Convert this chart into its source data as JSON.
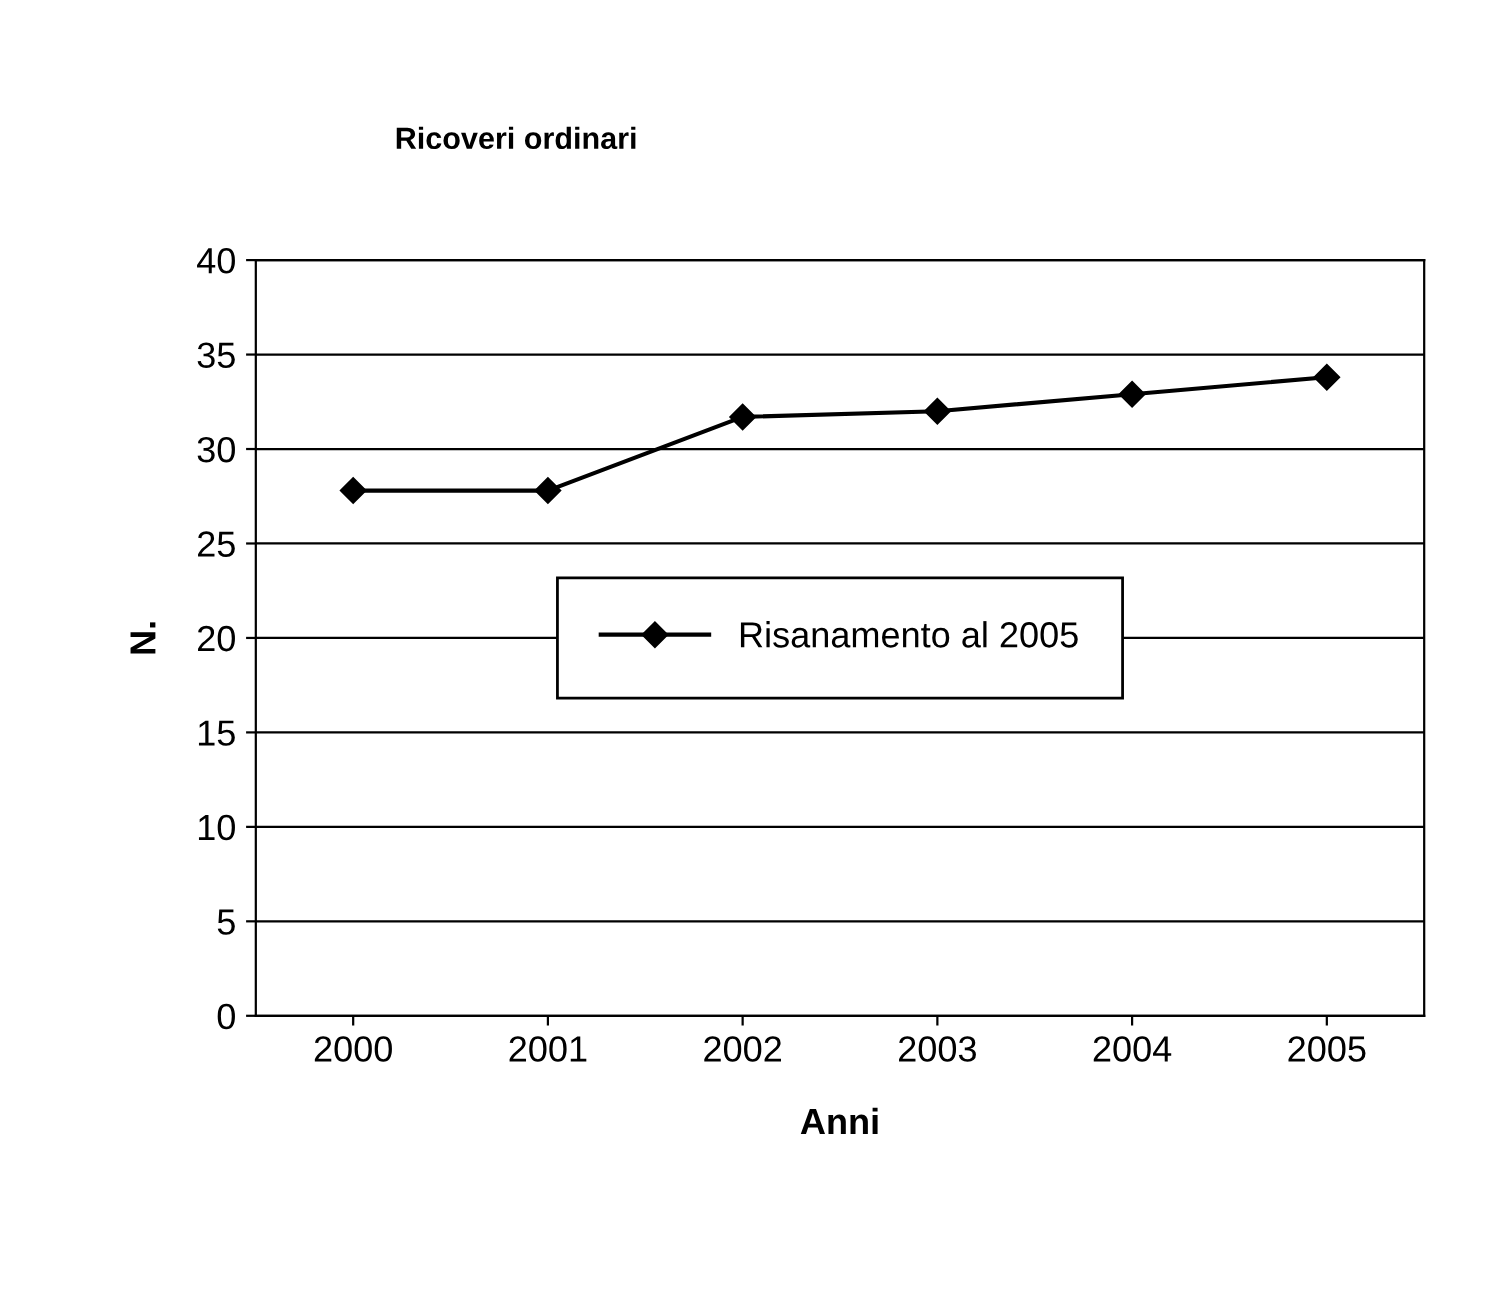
{
  "chart_data": {
    "type": "line",
    "title": "Ricoveri ordinari",
    "xlabel": "Anni",
    "ylabel": "N.",
    "categories": [
      "2000",
      "2001",
      "2002",
      "2003",
      "2004",
      "2005"
    ],
    "series": [
      {
        "name": "Risanamento al 2005",
        "color": "#000000",
        "values": [
          27.8,
          27.8,
          31.7,
          32.0,
          32.9,
          33.8
        ]
      }
    ],
    "ylim": [
      0,
      40
    ],
    "yticks": [
      0,
      5,
      10,
      15,
      20,
      25,
      30,
      35,
      40
    ],
    "grid": "y",
    "legend": "center",
    "marker": "diamond",
    "line_style": "solid"
  }
}
